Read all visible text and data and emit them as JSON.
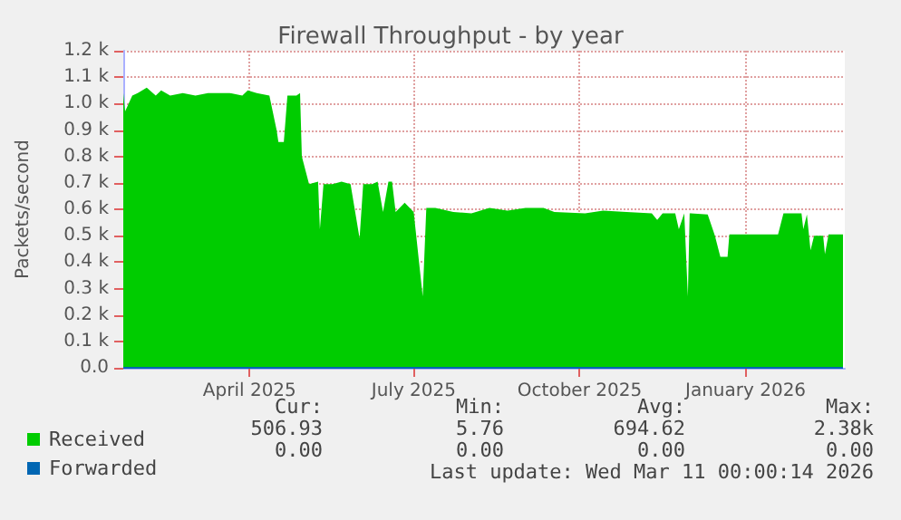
{
  "chart_data": {
    "type": "area",
    "title": "Firewall Throughput - by year",
    "ylabel": "Packets/second",
    "xlim": [
      "2025-02-04",
      "2026-03-11"
    ],
    "xticks": [
      {
        "value": "2025-04-15",
        "label": "April 2025"
      },
      {
        "value": "2025-07-15",
        "label": "July 2025"
      },
      {
        "value": "2025-10-15",
        "label": "October 2025"
      },
      {
        "value": "2026-01-15",
        "label": "January 2026"
      }
    ],
    "ylim": [
      0,
      1200
    ],
    "yticks": [
      {
        "value": 0,
        "label": "0.0"
      },
      {
        "value": 100,
        "label": "0.1 k"
      },
      {
        "value": 200,
        "label": "0.2 k"
      },
      {
        "value": 300,
        "label": "0.3 k"
      },
      {
        "value": 400,
        "label": "0.4 k"
      },
      {
        "value": 500,
        "label": "0.5 k"
      },
      {
        "value": 600,
        "label": "0.6 k"
      },
      {
        "value": 700,
        "label": "0.7 k"
      },
      {
        "value": 800,
        "label": "0.8 k"
      },
      {
        "value": 900,
        "label": "0.9 k"
      },
      {
        "value": 1000,
        "label": "1.0 k"
      },
      {
        "value": 1100,
        "label": "1.1 k"
      },
      {
        "value": 1200,
        "label": "1.2 k"
      }
    ],
    "grid": true,
    "legend": "bottom left",
    "series": [
      {
        "name": "Received",
        "color": "#00cc00",
        "x": [
          "2025-02-04",
          "2025-02-05",
          "2025-02-09",
          "2025-02-12",
          "2025-02-17",
          "2025-02-22",
          "2025-02-25",
          "2025-03-02",
          "2025-03-09",
          "2025-03-16",
          "2025-03-23",
          "2025-03-29",
          "2025-04-04",
          "2025-04-11",
          "2025-04-14",
          "2025-04-19",
          "2025-04-26",
          "2025-04-30",
          "2025-05-01",
          "2025-05-04",
          "2025-05-06",
          "2025-05-11",
          "2025-05-13",
          "2025-05-14",
          "2025-05-18",
          "2025-05-23",
          "2025-05-24",
          "2025-05-26",
          "2025-05-31",
          "2025-06-05",
          "2025-06-10",
          "2025-06-15",
          "2025-06-17",
          "2025-06-22",
          "2025-06-25",
          "2025-06-28",
          "2025-07-01",
          "2025-07-03",
          "2025-07-05",
          "2025-07-10",
          "2025-07-15",
          "2025-07-20",
          "2025-07-22",
          "2025-07-27",
          "2025-08-06",
          "2025-08-16",
          "2025-08-26",
          "2025-09-05",
          "2025-09-15",
          "2025-09-25",
          "2025-10-01",
          "2025-10-18",
          "2025-10-28",
          "2025-11-10",
          "2025-11-24",
          "2025-11-27",
          "2025-11-30",
          "2025-12-07",
          "2025-12-09",
          "2025-12-12",
          "2025-12-14",
          "2025-12-15",
          "2025-12-25",
          "2025-12-29",
          "2026-01-01",
          "2026-01-05",
          "2026-01-06",
          "2026-01-16",
          "2026-02-02",
          "2026-02-05",
          "2026-02-15",
          "2026-02-16",
          "2026-02-18",
          "2026-02-20",
          "2026-02-22",
          "2026-02-27",
          "2026-02-28",
          "2026-03-02",
          "2026-03-10"
        ],
        "values": [
          1040,
          970,
          1030,
          1040,
          1060,
          1030,
          1050,
          1030,
          1040,
          1030,
          1040,
          1040,
          1040,
          1030,
          1050,
          1040,
          1030,
          900,
          855,
          855,
          1030,
          1030,
          1040,
          800,
          695,
          705,
          525,
          695,
          695,
          705,
          695,
          490,
          695,
          695,
          705,
          590,
          705,
          705,
          590,
          625,
          590,
          270,
          605,
          605,
          590,
          585,
          605,
          595,
          605,
          605,
          590,
          585,
          595,
          590,
          585,
          560,
          585,
          585,
          525,
          585,
          270,
          585,
          580,
          500,
          420,
          420,
          505,
          505,
          505,
          585,
          585,
          525,
          580,
          445,
          500,
          500,
          430,
          505,
          505
        ]
      },
      {
        "name": "Forwarded",
        "color": "#0066b3",
        "type": "line",
        "x": [
          "2025-02-04",
          "2026-03-10"
        ],
        "values": [
          0,
          0
        ]
      }
    ],
    "annotations": [
      "Cur:",
      "Min:",
      "Avg:",
      "Max:",
      "506.93",
      "5.76",
      "694.62",
      "2.38k",
      "0.00",
      "0.00",
      "0.00",
      "0.00",
      "Last update: Wed Mar 11 00:00:14 2026"
    ]
  }
}
